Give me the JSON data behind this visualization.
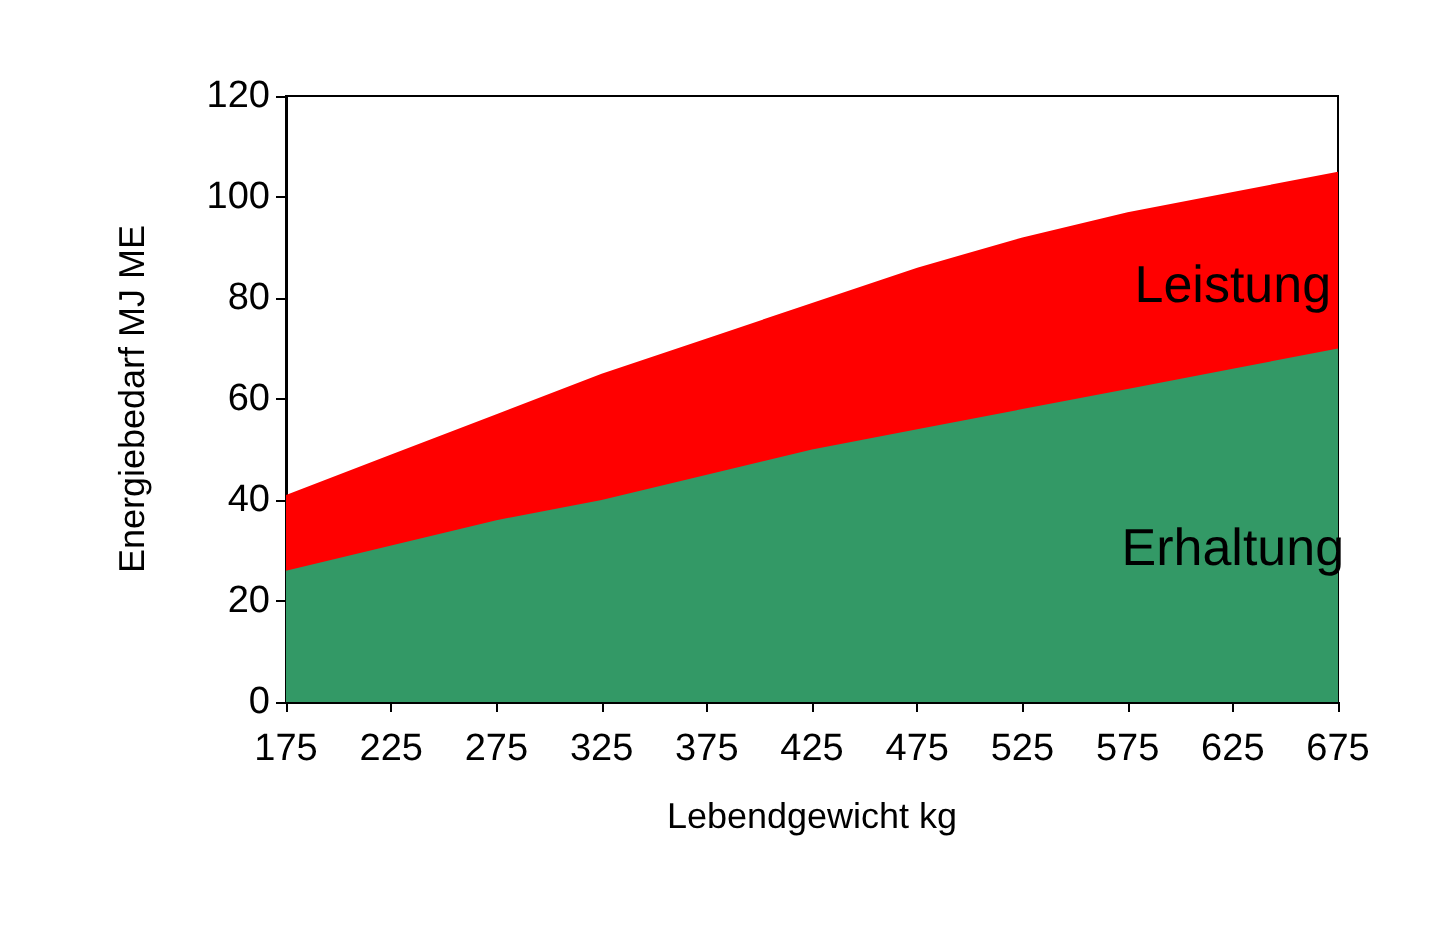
{
  "chart_data": {
    "type": "area",
    "stacked": true,
    "xlabel": "Lebendgewicht kg",
    "ylabel": "Energiebedarf MJ ME",
    "x": [
      175,
      225,
      275,
      325,
      375,
      425,
      475,
      525,
      575,
      625,
      675
    ],
    "series": [
      {
        "name": "Erhaltung",
        "color": "#339966",
        "values": [
          26,
          31,
          36,
          40,
          45,
          50,
          54,
          58,
          62,
          66,
          70
        ]
      },
      {
        "name": "Leistung",
        "color": "#ff0000",
        "values": [
          15,
          18,
          21,
          25,
          27,
          29,
          32,
          34,
          35,
          35,
          35
        ]
      }
    ],
    "xlim": [
      175,
      675
    ],
    "xticks": [
      175,
      225,
      275,
      325,
      375,
      425,
      475,
      525,
      575,
      625,
      675
    ],
    "ylim": [
      0,
      120
    ],
    "yticks": [
      0,
      20,
      40,
      60,
      80,
      100,
      120
    ],
    "grid": false,
    "legend": false
  }
}
